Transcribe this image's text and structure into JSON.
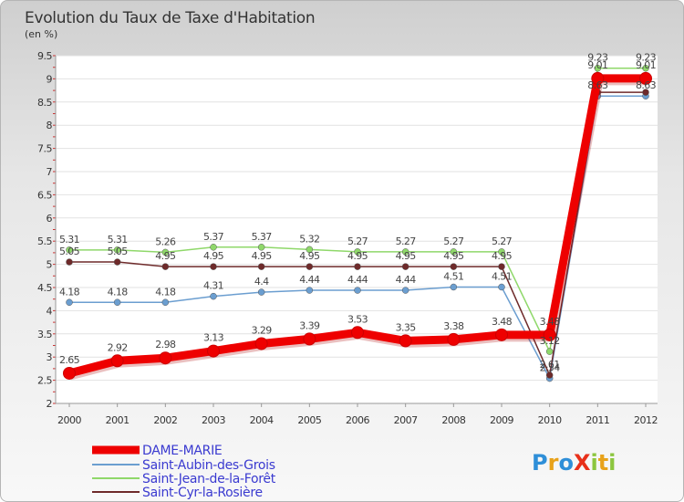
{
  "chart_data": {
    "type": "line",
    "title": "Evolution du Taux de Taxe d'Habitation",
    "subtitle": "(en %)",
    "xlabel": "",
    "ylabel": "",
    "categories": [
      "2000",
      "2001",
      "2002",
      "2003",
      "2004",
      "2005",
      "2006",
      "2007",
      "2008",
      "2009",
      "2010",
      "2011",
      "2012"
    ],
    "y_ticks": [
      "2",
      "2.5",
      "3",
      "3.5",
      "4",
      "4.5",
      "5",
      "5.5",
      "6",
      "6.5",
      "7",
      "7.5",
      "8",
      "8.5",
      "9",
      "9.5"
    ],
    "ylim": [
      2,
      9.5
    ],
    "grid": "horizontal",
    "legend_position": "bottom-left",
    "series": [
      {
        "name": "Saint-Aubin-des-Grois",
        "color": "#6b9ed0",
        "values": [
          4.18,
          4.18,
          4.18,
          4.31,
          4.4,
          4.44,
          4.44,
          4.44,
          4.51,
          4.51,
          2.54,
          8.63,
          8.63
        ],
        "labels": [
          "4.18",
          "4.18",
          "4.18",
          "4.31",
          "4.4",
          "4.44",
          "4.44",
          "4.44",
          "4.51",
          "4.51",
          "2.54",
          "8.63",
          "8.63"
        ]
      },
      {
        "name": "Saint-Jean-de-la-Forêt",
        "color": "#8fd86a",
        "values": [
          5.31,
          5.31,
          5.26,
          5.37,
          5.37,
          5.32,
          5.27,
          5.27,
          5.27,
          5.27,
          3.12,
          9.23,
          9.23
        ],
        "labels": [
          "5.31",
          "5.31",
          "5.26",
          "5.37",
          "5.37",
          "5.32",
          "5.27",
          "5.27",
          "5.27",
          "5.27",
          "3.12",
          "9.23",
          "9.23"
        ]
      },
      {
        "name": "Saint-Cyr-la-Rosière",
        "color": "#6e2a2a",
        "values": [
          5.05,
          5.05,
          4.95,
          4.95,
          4.95,
          4.95,
          4.95,
          4.95,
          4.95,
          4.95,
          2.61,
          8.71,
          8.71
        ],
        "labels": [
          "5.05",
          "5.05",
          "4.95",
          "4.95",
          "4.95",
          "4.95",
          "4.95",
          "4.95",
          "4.95",
          "4.95",
          "2.61",
          "",
          ""
        ]
      },
      {
        "name": "DAME-MARIE",
        "color": "#ee0000",
        "values": [
          2.65,
          2.92,
          2.98,
          3.13,
          3.29,
          3.39,
          3.53,
          3.35,
          3.38,
          3.48,
          3.48,
          9.01,
          9.01
        ],
        "labels": [
          "2.65",
          "2.92",
          "2.98",
          "3.13",
          "3.29",
          "3.39",
          "3.53",
          "3.35",
          "3.38",
          "3.48",
          "3.48",
          "9.01",
          "9.01"
        ]
      }
    ]
  },
  "legend": [
    {
      "label": "DAME-MARIE",
      "color": "#ee0000"
    },
    {
      "label": "Saint-Aubin-des-Grois",
      "color": "#6b9ed0"
    },
    {
      "label": "Saint-Jean-de-la-Forêt",
      "color": "#8fd86a"
    },
    {
      "label": "Saint-Cyr-la-Rosière",
      "color": "#6e2a2a"
    }
  ],
  "logo": {
    "text": "ProXiti",
    "letters": [
      "P",
      "r",
      "o",
      "X",
      "i",
      "t",
      "i"
    ]
  }
}
